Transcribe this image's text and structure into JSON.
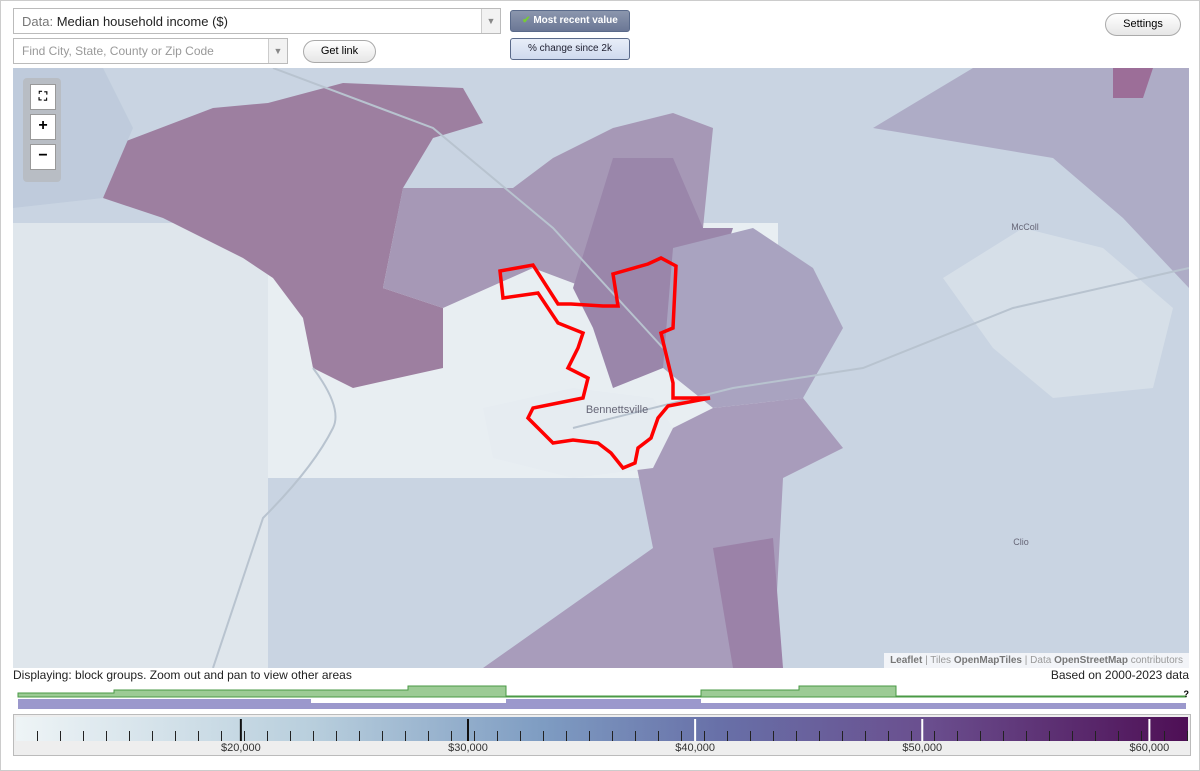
{
  "controls": {
    "data_label": "Data:",
    "data_value": "Median household income ($)",
    "search_placeholder": "Find City, State, County or Zip Code",
    "get_link": "Get link",
    "most_recent": "Most recent value",
    "pct_change": "% change since 2k",
    "settings": "Settings"
  },
  "map": {
    "places": [
      "McColl",
      "Bennettsville",
      "Clio"
    ],
    "attribution": {
      "leaflet": "Leaflet",
      "tiles": "Tiles",
      "tiles_source": "OpenMapTiles",
      "data": "Data",
      "data_source": "OpenStreetMap",
      "contributors": "contributors"
    }
  },
  "status": {
    "displaying": "Displaying: block groups. Zoom out and pan to view other areas",
    "based_on": "Based on 2000-2023 data",
    "help": "?"
  },
  "legend": {
    "range": [
      10100,
      61700
    ],
    "ticks": [
      {
        "value": 20000,
        "label": "$20,000"
      },
      {
        "value": 30000,
        "label": "$30,000"
      },
      {
        "value": 40000,
        "label": "$40,000"
      },
      {
        "value": 50000,
        "label": "$50,000"
      },
      {
        "value": 60000,
        "label": "$60,000"
      }
    ]
  }
}
